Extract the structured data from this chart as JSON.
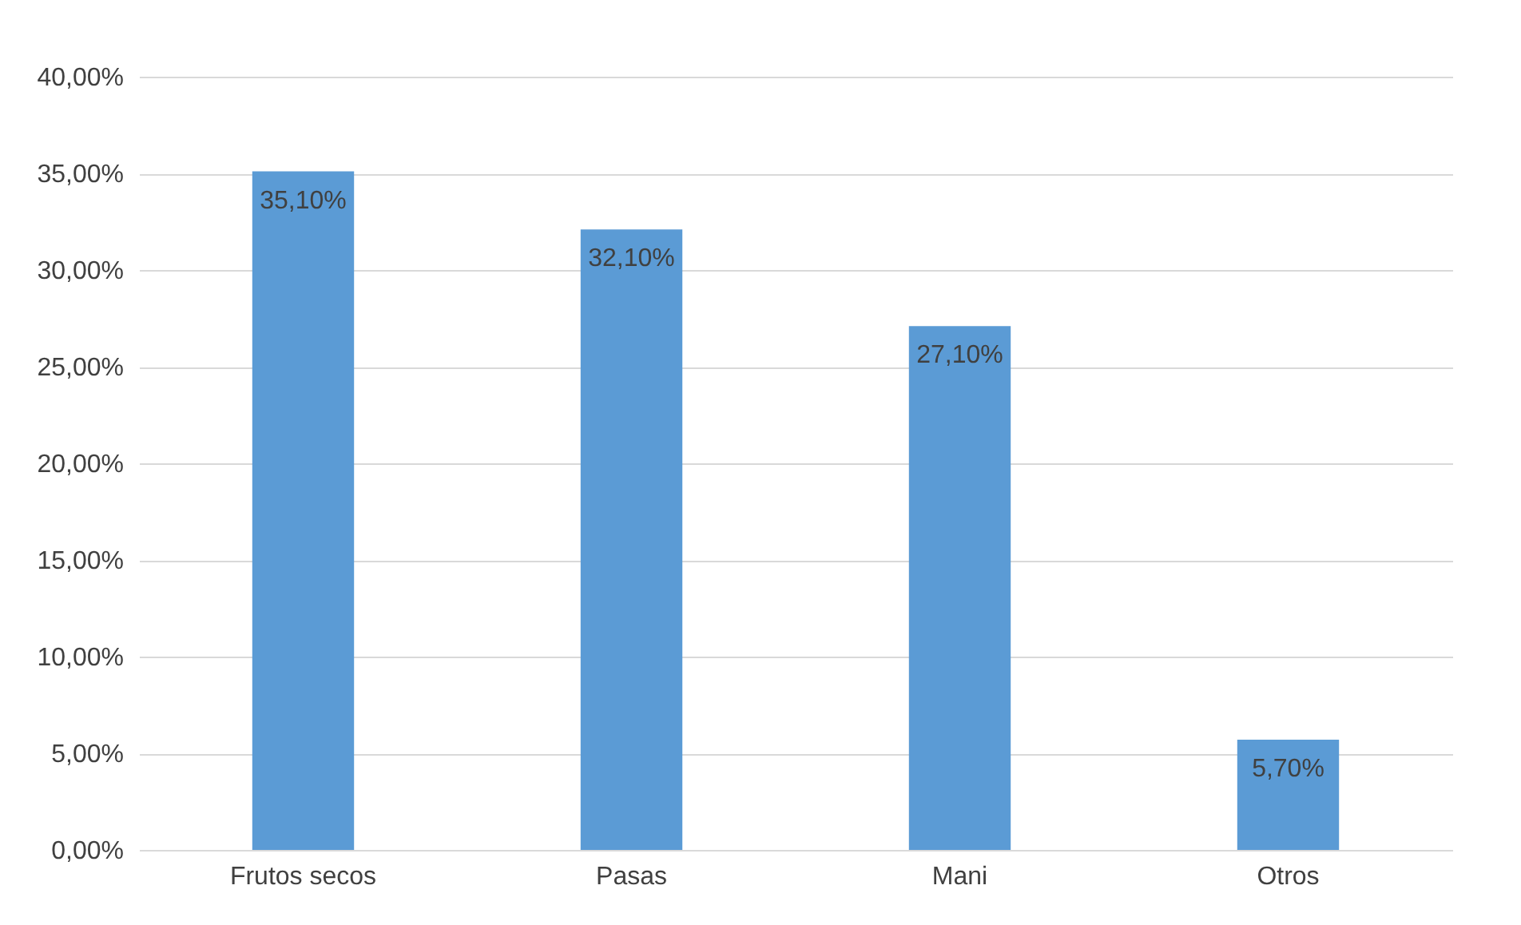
{
  "chart_data": {
    "type": "bar",
    "categories": [
      "Frutos secos",
      "Pasas",
      "Mani",
      "Otros"
    ],
    "series": [
      {
        "color": "#5b9bd5",
        "values": [
          35.1,
          32.1,
          27.1,
          5.7
        ]
      }
    ],
    "value_labels": [
      "35,10%",
      "32,10%",
      "27,10%",
      "5,70%"
    ],
    "ylim": [
      0,
      40
    ],
    "yticks": [
      {
        "value": 0,
        "label": "0,00%"
      },
      {
        "value": 5,
        "label": "5,00%"
      },
      {
        "value": 10,
        "label": "10,00%"
      },
      {
        "value": 15,
        "label": "15,00%"
      },
      {
        "value": 20,
        "label": "20,00%"
      },
      {
        "value": 25,
        "label": "25,00%"
      },
      {
        "value": 30,
        "label": "30,00%"
      },
      {
        "value": 35,
        "label": "35,00%"
      },
      {
        "value": 40,
        "label": "40,00%"
      }
    ],
    "grid": "y",
    "legend": false
  }
}
